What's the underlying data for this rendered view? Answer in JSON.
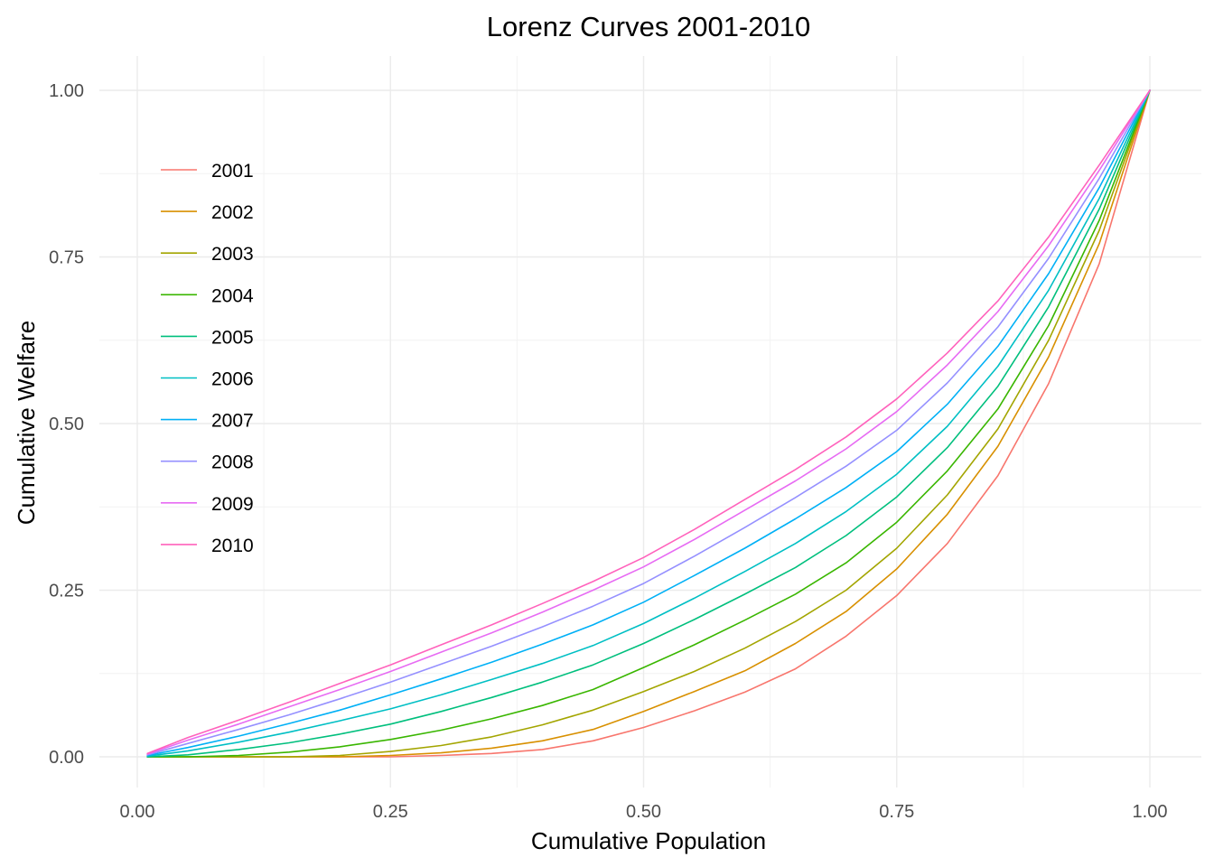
{
  "chart_data": {
    "type": "line",
    "title": "Lorenz Curves 2001-2010",
    "xlabel": "Cumulative Population",
    "ylabel": "Cumulative Welfare",
    "xlim": [
      0,
      1
    ],
    "ylim": [
      0,
      1
    ],
    "x_ticks": [
      0,
      0.25,
      0.5,
      0.75,
      1
    ],
    "x_tick_labels": [
      "0.00",
      "0.25",
      "0.50",
      "0.75",
      "1.00"
    ],
    "y_ticks": [
      0,
      0.25,
      0.5,
      0.75,
      1
    ],
    "y_tick_labels": [
      "0.00",
      "0.25",
      "0.50",
      "0.75",
      "1.00"
    ],
    "grid": true,
    "legend_position": "top-left",
    "x": [
      0.01,
      0.05,
      0.1,
      0.15,
      0.2,
      0.25,
      0.3,
      0.35,
      0.4,
      0.45,
      0.5,
      0.55,
      0.6,
      0.65,
      0.7,
      0.75,
      0.8,
      0.85,
      0.9,
      0.95,
      1.0
    ],
    "series": [
      {
        "name": "2001",
        "color": "#F8766D",
        "values": [
          0.0,
          0.0,
          0.0,
          0.0,
          0.0,
          0.0,
          0.002,
          0.005,
          0.011,
          0.024,
          0.044,
          0.069,
          0.097,
          0.132,
          0.181,
          0.242,
          0.32,
          0.422,
          0.56,
          0.74,
          1.0
        ]
      },
      {
        "name": "2002",
        "color": "#D89000",
        "values": [
          0.0,
          0.0,
          0.0,
          0.0,
          0.0,
          0.002,
          0.006,
          0.013,
          0.024,
          0.041,
          0.068,
          0.098,
          0.129,
          0.17,
          0.218,
          0.282,
          0.364,
          0.466,
          0.6,
          0.77,
          1.0
        ]
      },
      {
        "name": "2003",
        "color": "#A3A500",
        "values": [
          0.0,
          0.0,
          0.0,
          0.0,
          0.002,
          0.008,
          0.017,
          0.03,
          0.048,
          0.07,
          0.098,
          0.128,
          0.163,
          0.203,
          0.25,
          0.313,
          0.393,
          0.492,
          0.625,
          0.79,
          1.0
        ]
      },
      {
        "name": "2004",
        "color": "#39B600",
        "values": [
          0.0,
          0.0,
          0.002,
          0.007,
          0.015,
          0.026,
          0.04,
          0.057,
          0.077,
          0.101,
          0.134,
          0.168,
          0.205,
          0.244,
          0.291,
          0.352,
          0.429,
          0.522,
          0.647,
          0.805,
          1.0
        ]
      },
      {
        "name": "2005",
        "color": "#00BF7D",
        "values": [
          0.0,
          0.003,
          0.011,
          0.021,
          0.034,
          0.049,
          0.068,
          0.089,
          0.112,
          0.138,
          0.17,
          0.206,
          0.244,
          0.284,
          0.332,
          0.39,
          0.464,
          0.556,
          0.675,
          0.822,
          1.0
        ]
      },
      {
        "name": "2006",
        "color": "#00BFC4",
        "values": [
          0.001,
          0.009,
          0.022,
          0.037,
          0.054,
          0.072,
          0.093,
          0.116,
          0.14,
          0.167,
          0.2,
          0.238,
          0.278,
          0.32,
          0.368,
          0.424,
          0.496,
          0.586,
          0.7,
          0.838,
          1.0
        ]
      },
      {
        "name": "2007",
        "color": "#00B0F6",
        "values": [
          0.002,
          0.014,
          0.031,
          0.05,
          0.07,
          0.093,
          0.117,
          0.142,
          0.169,
          0.198,
          0.232,
          0.272,
          0.313,
          0.357,
          0.404,
          0.458,
          0.529,
          0.616,
          0.725,
          0.854,
          1.0
        ]
      },
      {
        "name": "2008",
        "color": "#9590FF",
        "values": [
          0.003,
          0.02,
          0.041,
          0.063,
          0.087,
          0.112,
          0.139,
          0.166,
          0.195,
          0.226,
          0.26,
          0.301,
          0.344,
          0.389,
          0.436,
          0.49,
          0.561,
          0.645,
          0.748,
          0.868,
          1.0
        ]
      },
      {
        "name": "2009",
        "color": "#E76BF3",
        "values": [
          0.004,
          0.025,
          0.049,
          0.075,
          0.101,
          0.128,
          0.157,
          0.186,
          0.217,
          0.25,
          0.285,
          0.326,
          0.37,
          0.414,
          0.462,
          0.518,
          0.588,
          0.668,
          0.767,
          0.88,
          1.0
        ]
      },
      {
        "name": "2010",
        "color": "#FF62BC",
        "values": [
          0.005,
          0.029,
          0.055,
          0.082,
          0.11,
          0.138,
          0.168,
          0.198,
          0.23,
          0.263,
          0.299,
          0.341,
          0.386,
          0.431,
          0.48,
          0.537,
          0.606,
          0.684,
          0.78,
          0.888,
          1.0
        ]
      }
    ]
  }
}
